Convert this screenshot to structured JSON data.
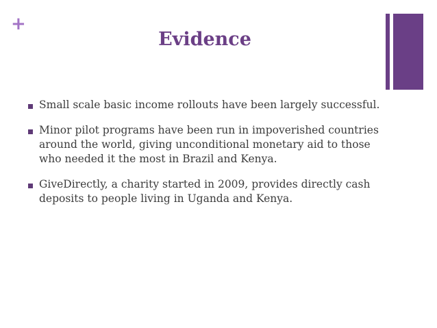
{
  "slide": {
    "plus_symbol": "+",
    "title": "Evidence",
    "bullets": [
      "Small scale basic income rollouts have been largely successful.",
      "Minor pilot programs have been run in impoverished countries around the world, giving unconditional monetary aid to those who needed it the most in Brazil and Kenya.",
      "GiveDirectly, a charity started in 2009, provides directly cash deposits to people living in Uganda and Kenya."
    ]
  },
  "colors": {
    "accent": "#6b3f86",
    "plus": "#a374c6",
    "text": "#3c3c3c"
  }
}
